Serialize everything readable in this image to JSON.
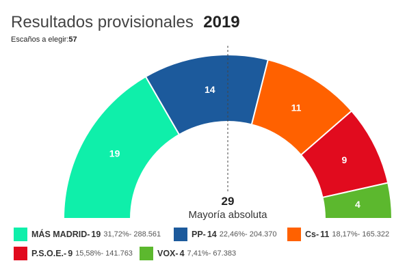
{
  "header": {
    "title": "Resultados provisionales",
    "year": "2019",
    "seats_label": "Escaños a elegir:",
    "seats_value": "57"
  },
  "majority": {
    "value": "29",
    "label": "Mayoría absoluta"
  },
  "chart_data": {
    "type": "pie",
    "subtype": "parliament-hemicycle",
    "total_seats": 57,
    "majority": 29,
    "series": [
      {
        "name": "MÁS MADRID",
        "seats": 19,
        "percent": "31,72%",
        "votes": "288.561",
        "color": "#0fefaa"
      },
      {
        "name": "PP",
        "seats": 14,
        "percent": "22,46%",
        "votes": "204.370",
        "color": "#1c5a9c"
      },
      {
        "name": "Cs",
        "seats": 11,
        "percent": "18,17%",
        "votes": "165.322",
        "color": "#ff6100"
      },
      {
        "name": "P.S.O.E.",
        "seats": 9,
        "percent": "15,58%",
        "votes": "141.763",
        "color": "#e10b1e"
      },
      {
        "name": "VOX",
        "seats": 4,
        "percent": "7,41%",
        "votes": "67.383",
        "color": "#5cb82e"
      }
    ]
  },
  "legend": [
    {
      "name": "MÁS MADRID-",
      "seats": "19",
      "info": "31,72%- 288.561",
      "color": "#0fefaa"
    },
    {
      "name": "PP-",
      "seats": "14",
      "info": "22,46%- 204.370",
      "color": "#1c5a9c"
    },
    {
      "name": "Cs-",
      "seats": "11",
      "info": "18,17%- 165.322",
      "color": "#ff6100"
    },
    {
      "name": "P.S.O.E.-",
      "seats": "9",
      "info": "15,58%- 141.763",
      "color": "#e10b1e"
    },
    {
      "name": "VOX-",
      "seats": "4",
      "info": "7,41%- 67.383",
      "color": "#5cb82e"
    }
  ]
}
